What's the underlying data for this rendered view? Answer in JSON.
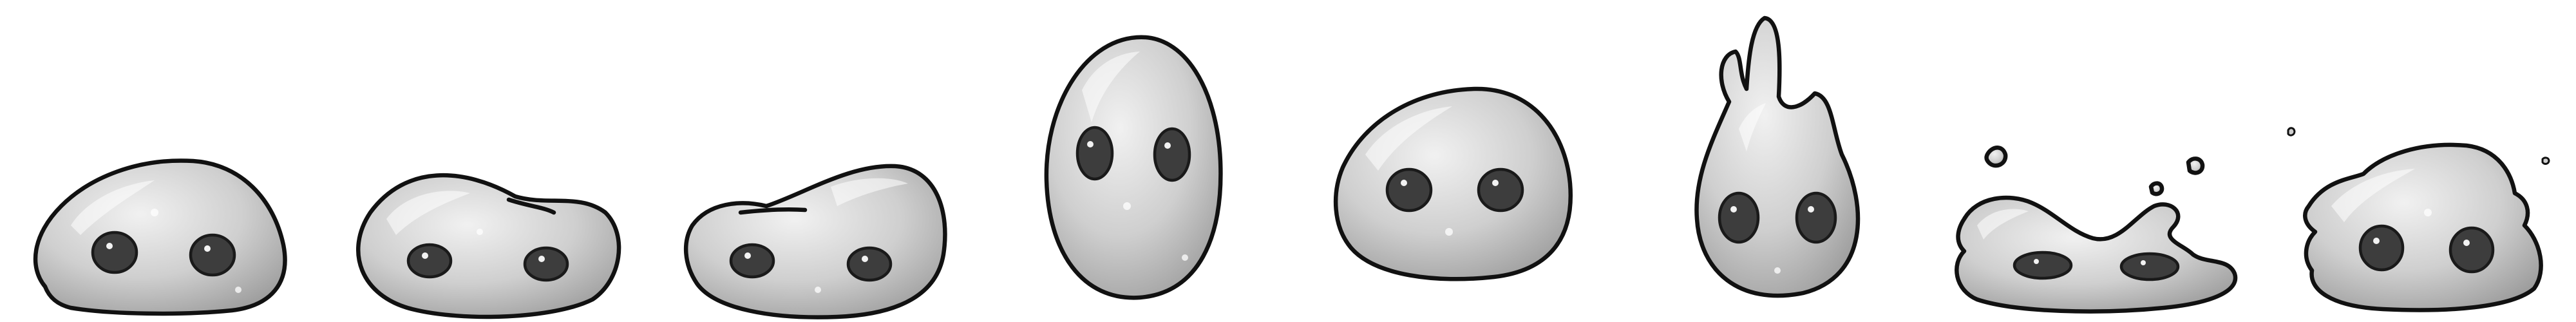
{
  "sheet": {
    "type": "slime sprite animation sheet",
    "background": "#ffffff",
    "frame_count": 8,
    "frames": [
      {
        "pose": "idle-rest"
      },
      {
        "pose": "squish-left"
      },
      {
        "pose": "squish-right"
      },
      {
        "pose": "stretch-tall"
      },
      {
        "pose": "round-bounce"
      },
      {
        "pose": "flame-top"
      },
      {
        "pose": "splash"
      },
      {
        "pose": "lumpy-recover"
      }
    ]
  },
  "palette": {
    "body_light": "#ececec",
    "body_mid": "#c4c4c4",
    "body_dark": "#9a9a9a",
    "outline": "#111111",
    "eye": "#3d3d3d"
  }
}
